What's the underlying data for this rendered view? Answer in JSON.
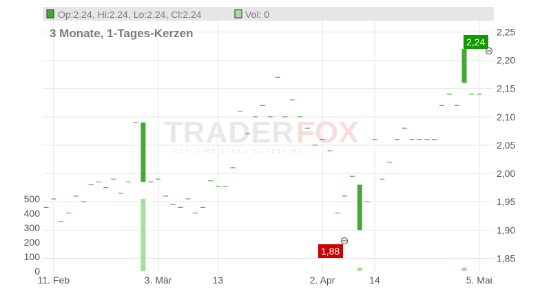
{
  "header": {
    "ohlc_label": "Op:2.24, Hi:2.24, Lo:2.24, Cl:2.24",
    "vol_label": "Vol: 0",
    "subtitle": "3 Monate, 1-Tages-Kerzen"
  },
  "watermark": {
    "brand": "TRADERFOX",
    "tagline": "REALTIME STOCK SCREENING"
  },
  "colors": {
    "up": "#44aa33",
    "flat": "#55aa44",
    "volume": "#a8dda0",
    "high_badge": "#119900",
    "low_badge": "#cc0000",
    "legend_bar": "#e6e6e6"
  },
  "chart_data": {
    "type": "candlestick",
    "price_axis": {
      "ticks": [
        "2,25",
        "2,20",
        "2,15",
        "2,10",
        "2,05",
        "2,00",
        "1,95",
        "1,90",
        "1,85"
      ],
      "range": [
        1.825,
        2.27
      ]
    },
    "volume_axis": {
      "ticks": [
        "500",
        "400",
        "300",
        "200",
        "100",
        "0"
      ],
      "range": [
        0,
        590
      ]
    },
    "x_labels": [
      "11. Feb",
      "3. Mär",
      "13",
      "2. Apr",
      "14",
      "5. Mai"
    ],
    "x_label_day_index": [
      1,
      15,
      23,
      37,
      44,
      58
    ],
    "price_values": [
      1.94,
      1.955,
      1.915,
      1.93,
      1.96,
      1.95,
      1.98,
      1.985,
      1.975,
      1.99,
      1.965,
      1.985,
      2.09,
      1.96,
      1.985,
      1.99,
      1.96,
      1.945,
      1.94,
      1.955,
      1.93,
      1.94,
      1.987,
      1.977,
      1.977,
      2.01,
      2.11,
      2.07,
      2.1,
      2.12,
      2.1,
      2.17,
      2.1,
      2.13,
      2.1,
      2.08,
      2.05,
      2.06,
      2.04,
      1.93,
      1.96,
      1.995,
      1.95,
      1.95,
      2.06,
      1.99,
      2.02,
      2.06,
      2.08,
      2.06,
      2.06,
      2.06,
      2.06,
      2.12,
      2.14,
      2.12,
      2.22,
      2.14,
      2.14
    ],
    "candles": [
      {
        "day": 13,
        "open": 1.985,
        "close": 2.09
      },
      {
        "day": 42,
        "open": 1.9,
        "close": 1.98
      },
      {
        "day": 56,
        "open": 2.16,
        "close": 2.22
      }
    ],
    "volume_values": [
      {
        "day": 13,
        "value": 500
      },
      {
        "day": 42,
        "value": 25
      },
      {
        "day": 56,
        "value": 25
      }
    ],
    "high_label": "2,24",
    "low_label": "1,88"
  }
}
